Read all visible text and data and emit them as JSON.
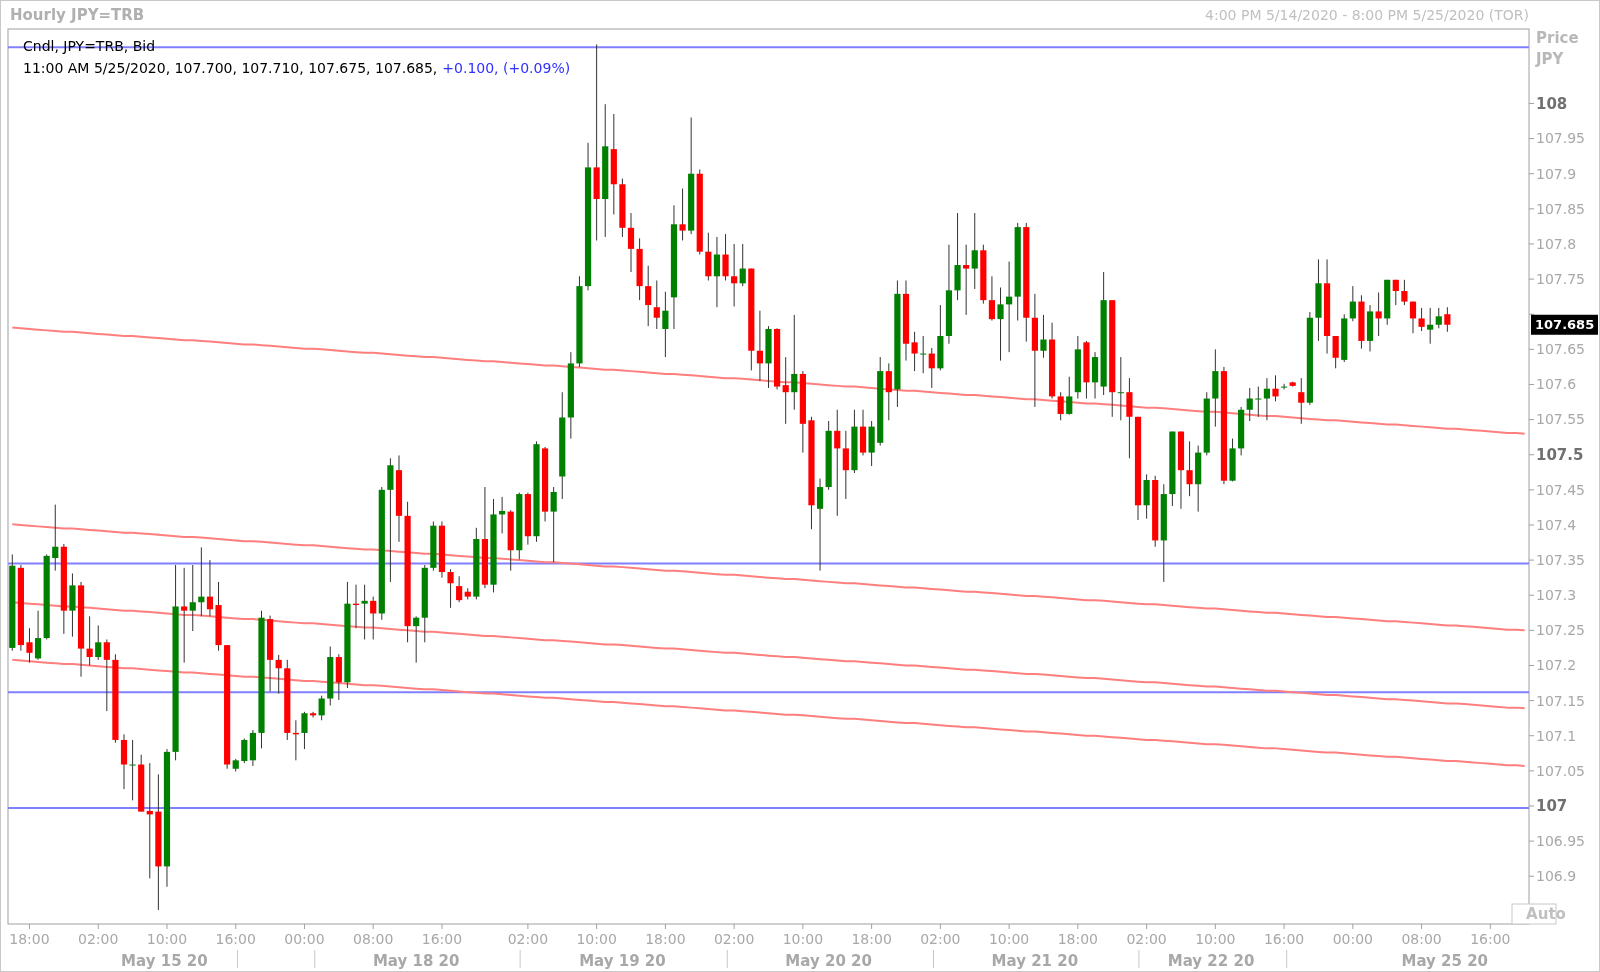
{
  "chart_data": {
    "type": "candlestick",
    "title": "Hourly JPY=TRB",
    "subtitle": "4:00 PM 5/14/2020 - 8:00 PM 5/25/2020 (TOR)",
    "ylabel": "Price\nJPY",
    "categories": [
      null,
      null,
      "18:00",
      null,
      null,
      null,
      null,
      null,
      null,
      null,
      "02:00",
      null,
      null,
      null,
      null,
      null,
      null,
      null,
      "10:00",
      null,
      null,
      null,
      null,
      null,
      null,
      null,
      "16:00",
      null,
      null,
      null,
      null,
      null,
      null,
      null,
      "00:00",
      null,
      null,
      null,
      null,
      null,
      null,
      null,
      "08:00",
      null,
      null,
      null,
      null,
      null,
      null,
      null,
      "16:00",
      null,
      null,
      null,
      null,
      null,
      null,
      null,
      null,
      null,
      "02:00",
      null,
      null,
      null,
      null,
      null,
      null,
      null,
      "10:00",
      null,
      null,
      null,
      null,
      null,
      null,
      null,
      "18:00",
      null,
      null,
      null,
      null,
      null,
      null,
      null,
      "02:00",
      null,
      null,
      null,
      null,
      null,
      null,
      null,
      "10:00",
      null,
      null,
      null,
      null,
      null,
      null,
      null,
      "18:00",
      null,
      null,
      null,
      null,
      null,
      null,
      null,
      "02:00",
      null,
      null,
      null,
      null,
      null,
      null,
      null,
      "10:00",
      null,
      null,
      null,
      null,
      null,
      null,
      null,
      "18:00",
      null,
      null,
      null,
      null,
      null,
      null,
      null,
      "02:00",
      null,
      null,
      null,
      null,
      null,
      null,
      null,
      "10:00",
      null,
      null,
      null,
      null,
      null,
      null,
      null,
      "16:00",
      null,
      null,
      null,
      null,
      null,
      null,
      null,
      "00:00",
      null,
      null,
      null,
      null,
      null,
      null,
      null,
      "08:00",
      null,
      null,
      null,
      null,
      null,
      null,
      null,
      "16:00",
      null,
      null,
      null,
      null
    ],
    "ohlc": [
      [
        107.225,
        107.358,
        107.221,
        107.342
      ],
      [
        107.339,
        107.343,
        107.221,
        107.229
      ],
      [
        107.233,
        107.253,
        107.204,
        107.218
      ],
      [
        107.21,
        107.278,
        107.208,
        107.239
      ],
      [
        107.239,
        107.358,
        107.237,
        107.356
      ],
      [
        107.353,
        107.429,
        107.335,
        107.369
      ],
      [
        107.369,
        107.373,
        107.245,
        107.278
      ],
      [
        107.278,
        107.331,
        107.241,
        107.314
      ],
      [
        107.314,
        107.319,
        107.184,
        107.224
      ],
      [
        107.224,
        107.27,
        107.2,
        107.212
      ],
      [
        107.212,
        107.257,
        107.208,
        107.233
      ],
      [
        107.233,
        107.237,
        107.135,
        107.208
      ],
      [
        107.208,
        107.216,
        107.09,
        107.094
      ],
      [
        107.094,
        107.102,
        107.024,
        107.059
      ],
      [
        107.059,
        107.094,
        107.008,
        107.059
      ],
      [
        107.059,
        107.073,
        106.992,
        106.992
      ],
      [
        106.993,
        107.061,
        106.897,
        106.988
      ],
      [
        106.992,
        107.045,
        106.852,
        106.914
      ],
      [
        106.914,
        107.081,
        106.885,
        107.077
      ],
      [
        107.077,
        107.343,
        107.065,
        107.284
      ],
      [
        107.284,
        107.339,
        107.204,
        107.278
      ],
      [
        107.278,
        107.343,
        107.249,
        107.29
      ],
      [
        107.29,
        107.368,
        107.27,
        107.298
      ],
      [
        107.298,
        107.35,
        107.27,
        107.28
      ],
      [
        107.286,
        107.319,
        107.221,
        107.229
      ],
      [
        107.229,
        107.229,
        107.053,
        107.059
      ],
      [
        107.053,
        107.067,
        107.049,
        107.065
      ],
      [
        107.064,
        107.096,
        107.061,
        107.094
      ],
      [
        107.065,
        107.108,
        107.057,
        107.104
      ],
      [
        107.104,
        107.278,
        107.082,
        107.268
      ],
      [
        107.266,
        107.271,
        107.163,
        107.208
      ],
      [
        107.208,
        107.215,
        107.16,
        107.196
      ],
      [
        107.196,
        107.208,
        107.094,
        107.104
      ],
      [
        107.104,
        107.122,
        107.065,
        107.102
      ],
      [
        107.104,
        107.134,
        107.081,
        107.132
      ],
      [
        107.132,
        107.134,
        107.126,
        107.129
      ],
      [
        107.129,
        107.157,
        107.122,
        107.153
      ],
      [
        107.153,
        107.227,
        107.143,
        107.212
      ],
      [
        107.212,
        107.216,
        107.151,
        107.176
      ],
      [
        107.176,
        107.319,
        107.168,
        107.288
      ],
      [
        107.288,
        107.315,
        107.253,
        107.286
      ],
      [
        107.288,
        107.315,
        107.237,
        107.292
      ],
      [
        107.292,
        107.298,
        107.237,
        107.274
      ],
      [
        107.274,
        107.454,
        107.265,
        107.45
      ],
      [
        107.45,
        107.495,
        107.319,
        107.485
      ],
      [
        107.478,
        107.499,
        107.376,
        107.413
      ],
      [
        107.413,
        107.433,
        107.233,
        107.256
      ],
      [
        107.256,
        107.27,
        107.204,
        107.268
      ],
      [
        107.268,
        107.343,
        107.233,
        107.339
      ],
      [
        107.339,
        107.405,
        107.335,
        107.399
      ],
      [
        107.399,
        107.405,
        107.325,
        107.333
      ],
      [
        107.333,
        107.337,
        107.282,
        107.317
      ],
      [
        107.313,
        107.327,
        107.29,
        107.293
      ],
      [
        107.305,
        107.31,
        107.294,
        107.298
      ],
      [
        107.298,
        107.396,
        107.294,
        107.38
      ],
      [
        107.38,
        107.454,
        107.31,
        107.315
      ],
      [
        107.315,
        107.437,
        107.304,
        107.415
      ],
      [
        107.415,
        107.44,
        107.388,
        107.42
      ],
      [
        107.419,
        107.421,
        107.335,
        107.364
      ],
      [
        107.364,
        107.446,
        107.351,
        107.444
      ],
      [
        107.444,
        107.446,
        107.372,
        107.384
      ],
      [
        107.384,
        107.519,
        107.376,
        107.515
      ],
      [
        107.509,
        107.511,
        107.405,
        107.419
      ],
      [
        107.419,
        107.454,
        107.347,
        107.447
      ],
      [
        107.469,
        107.589,
        107.437,
        107.553
      ],
      [
        107.553,
        107.646,
        107.523,
        107.63
      ],
      [
        107.63,
        107.754,
        107.625,
        107.74
      ],
      [
        107.74,
        107.944,
        107.734,
        107.909
      ],
      [
        107.909,
        108.084,
        107.805,
        107.864
      ],
      [
        107.864,
        107.999,
        107.81,
        107.939
      ],
      [
        107.935,
        107.985,
        107.842,
        107.885
      ],
      [
        107.885,
        107.893,
        107.81,
        107.823
      ],
      [
        107.823,
        107.844,
        107.76,
        107.793
      ],
      [
        107.793,
        107.808,
        107.72,
        107.74
      ],
      [
        107.74,
        107.769,
        107.683,
        107.713
      ],
      [
        107.71,
        107.748,
        107.679,
        107.695
      ],
      [
        107.679,
        107.732,
        107.639,
        107.705
      ],
      [
        107.724,
        107.855,
        107.679,
        107.828
      ],
      [
        107.828,
        107.879,
        107.805,
        107.819
      ],
      [
        107.819,
        107.98,
        107.814,
        107.9
      ],
      [
        107.9,
        107.906,
        107.785,
        107.789
      ],
      [
        107.789,
        107.816,
        107.748,
        107.754
      ],
      [
        107.754,
        107.81,
        107.71,
        107.785
      ],
      [
        107.785,
        107.814,
        107.748,
        107.754
      ],
      [
        107.754,
        107.8,
        107.711,
        107.744
      ],
      [
        107.744,
        107.8,
        107.74,
        107.765
      ],
      [
        107.765,
        107.765,
        107.62,
        107.648
      ],
      [
        107.648,
        107.705,
        107.605,
        107.63
      ],
      [
        107.63,
        107.683,
        107.595,
        107.679
      ],
      [
        107.679,
        107.68,
        107.593,
        107.597
      ],
      [
        107.599,
        107.639,
        107.544,
        107.589
      ],
      [
        107.589,
        107.699,
        107.564,
        107.615
      ],
      [
        107.615,
        107.619,
        107.503,
        107.544
      ],
      [
        107.549,
        107.554,
        107.394,
        107.428
      ],
      [
        107.423,
        107.466,
        107.335,
        107.454
      ],
      [
        107.454,
        107.548,
        107.45,
        107.534
      ],
      [
        107.534,
        107.564,
        107.413,
        107.509
      ],
      [
        107.509,
        107.534,
        107.437,
        107.478
      ],
      [
        107.478,
        107.564,
        107.474,
        107.54
      ],
      [
        107.54,
        107.564,
        107.499,
        107.503
      ],
      [
        107.503,
        107.548,
        107.484,
        107.54
      ],
      [
        107.517,
        107.639,
        107.513,
        107.619
      ],
      [
        107.619,
        107.63,
        107.549,
        107.589
      ],
      [
        107.593,
        107.748,
        107.568,
        107.729
      ],
      [
        107.729,
        107.748,
        107.634,
        107.658
      ],
      [
        107.66,
        107.675,
        107.619,
        107.644
      ],
      [
        107.644,
        107.669,
        107.616,
        107.644
      ],
      [
        107.644,
        107.652,
        107.595,
        107.623
      ],
      [
        107.623,
        107.713,
        107.62,
        107.669
      ],
      [
        107.669,
        107.799,
        107.658,
        107.734
      ],
      [
        107.734,
        107.844,
        107.72,
        107.77
      ],
      [
        107.77,
        107.799,
        107.699,
        107.765
      ],
      [
        107.765,
        107.844,
        107.736,
        107.791
      ],
      [
        107.791,
        107.799,
        107.715,
        107.72
      ],
      [
        107.72,
        107.754,
        107.691,
        107.693
      ],
      [
        107.693,
        107.738,
        107.634,
        107.714
      ],
      [
        107.714,
        107.775,
        107.646,
        107.725
      ],
      [
        107.725,
        107.83,
        107.691,
        107.824
      ],
      [
        107.824,
        107.83,
        107.661,
        107.695
      ],
      [
        107.695,
        107.729,
        107.568,
        107.648
      ],
      [
        107.648,
        107.699,
        107.638,
        107.664
      ],
      [
        107.664,
        107.688,
        107.58,
        107.583
      ],
      [
        107.583,
        107.589,
        107.549,
        107.558
      ],
      [
        107.558,
        107.611,
        107.557,
        107.583
      ],
      [
        107.589,
        107.669,
        107.58,
        107.65
      ],
      [
        107.66,
        107.662,
        107.58,
        107.603
      ],
      [
        107.603,
        107.646,
        107.58,
        107.639
      ],
      [
        107.597,
        107.76,
        107.585,
        107.72
      ],
      [
        107.72,
        107.72,
        107.554,
        107.589
      ],
      [
        107.589,
        107.639,
        107.549,
        107.589
      ],
      [
        107.589,
        107.609,
        107.495,
        107.554
      ],
      [
        107.554,
        107.554,
        107.407,
        107.428
      ],
      [
        107.428,
        107.472,
        107.409,
        107.464
      ],
      [
        107.464,
        107.47,
        107.369,
        107.378
      ],
      [
        107.378,
        107.458,
        107.319,
        107.444
      ],
      [
        107.444,
        107.533,
        107.427,
        107.533
      ],
      [
        107.533,
        107.533,
        107.423,
        107.478
      ],
      [
        107.478,
        107.519,
        107.441,
        107.458
      ],
      [
        107.458,
        107.513,
        107.419,
        107.503
      ],
      [
        107.503,
        107.589,
        107.499,
        107.58
      ],
      [
        107.58,
        107.65,
        107.54,
        107.619
      ],
      [
        107.619,
        107.625,
        107.458,
        107.463
      ],
      [
        107.463,
        107.523,
        107.462,
        107.509
      ],
      [
        107.509,
        107.568,
        107.499,
        107.564
      ],
      [
        107.564,
        107.595,
        107.548,
        107.58
      ],
      [
        107.58,
        107.597,
        107.554,
        107.58
      ],
      [
        107.58,
        107.609,
        107.549,
        107.594
      ],
      [
        107.594,
        107.613,
        107.576,
        107.583
      ],
      [
        107.597,
        107.601,
        107.593,
        107.597
      ],
      [
        107.603,
        107.604,
        107.597,
        107.598
      ],
      [
        107.589,
        107.609,
        107.544,
        107.574
      ],
      [
        107.574,
        107.703,
        107.571,
        107.695
      ],
      [
        107.695,
        107.778,
        107.662,
        107.744
      ],
      [
        107.744,
        107.778,
        107.644,
        107.669
      ],
      [
        107.669,
        107.669,
        107.623,
        107.638
      ],
      [
        107.635,
        107.7,
        107.632,
        107.694
      ],
      [
        107.694,
        107.74,
        107.69,
        107.718
      ],
      [
        107.718,
        107.727,
        107.651,
        107.662
      ],
      [
        107.662,
        107.713,
        107.647,
        107.704
      ],
      [
        107.704,
        107.731,
        107.669,
        107.694
      ],
      [
        107.694,
        107.749,
        107.685,
        107.749
      ],
      [
        107.749,
        107.749,
        107.713,
        107.733
      ],
      [
        107.733,
        107.749,
        107.713,
        107.718
      ],
      [
        107.718,
        107.718,
        107.673,
        107.694
      ],
      [
        107.694,
        107.709,
        107.676,
        107.682
      ],
      [
        107.678,
        107.709,
        107.658,
        107.685
      ],
      [
        107.685,
        107.709,
        107.68,
        107.697
      ],
      [
        107.7,
        107.71,
        107.675,
        107.685
      ],
      null,
      null,
      null,
      null,
      null,
      null,
      null,
      null,
      null
    ],
    "series": [
      {
        "type": "line",
        "color": "#ff7f7f",
        "values": [
          107.681,
          107.68,
          107.679,
          107.678,
          107.677,
          107.676,
          107.675,
          107.675,
          107.674,
          107.673,
          107.672,
          107.671,
          107.67,
          107.669,
          107.669,
          107.668,
          107.667,
          107.666,
          107.665,
          107.664,
          107.663,
          107.663,
          107.662,
          107.661,
          107.66,
          107.659,
          107.658,
          107.657,
          107.657,
          107.656,
          107.655,
          107.654,
          107.653,
          107.652,
          107.651,
          107.651,
          107.65,
          107.649,
          107.648,
          107.647,
          107.646,
          107.645,
          107.645,
          107.644,
          107.643,
          107.642,
          107.641,
          107.64,
          107.639,
          107.639,
          107.638,
          107.637,
          107.636,
          107.635,
          107.634,
          107.633,
          107.633,
          107.632,
          107.631,
          107.63,
          107.629,
          107.628,
          107.627,
          107.627,
          107.626,
          107.625,
          107.624,
          107.623,
          107.622,
          107.621,
          107.621,
          107.62,
          107.619,
          107.618,
          107.617,
          107.616,
          107.615,
          107.615,
          107.614,
          107.613,
          107.612,
          107.611,
          107.61,
          107.609,
          107.609,
          107.608,
          107.607,
          107.606,
          107.605,
          107.604,
          107.603,
          107.603,
          107.602,
          107.601,
          107.6,
          107.599,
          107.598,
          107.597,
          107.597,
          107.596,
          107.595,
          107.594,
          107.593,
          107.592,
          107.591,
          107.591,
          107.59,
          107.589,
          107.588,
          107.587,
          107.586,
          107.585,
          107.585,
          107.584,
          107.583,
          107.582,
          107.581,
          107.58,
          107.579,
          107.579,
          107.578,
          107.577,
          107.576,
          107.575,
          107.574,
          107.573,
          107.573,
          107.572,
          107.571,
          107.57,
          107.569,
          107.568,
          107.567,
          107.567,
          107.566,
          107.565,
          107.564,
          107.563,
          107.562,
          107.561,
          107.561,
          107.56,
          107.559,
          107.558,
          107.557,
          107.556,
          107.555,
          107.555,
          107.554,
          107.553,
          107.552,
          107.551,
          107.55,
          107.549,
          107.549,
          107.548,
          107.547,
          107.546,
          107.545,
          107.544,
          107.543,
          107.543,
          107.542,
          107.541,
          107.54,
          107.539,
          107.538,
          107.537,
          107.537,
          107.536,
          107.535,
          107.534,
          107.533,
          107.532,
          107.531,
          107.531,
          107.53
        ]
      },
      {
        "type": "line",
        "color": "#ff7f7f",
        "values": [
          107.401,
          107.4,
          107.399,
          107.398,
          107.397,
          107.396,
          107.395,
          107.395,
          107.394,
          107.393,
          107.392,
          107.391,
          107.39,
          107.389,
          107.389,
          107.388,
          107.387,
          107.386,
          107.385,
          107.384,
          107.383,
          107.383,
          107.382,
          107.381,
          107.38,
          107.379,
          107.378,
          107.377,
          107.377,
          107.376,
          107.375,
          107.374,
          107.373,
          107.372,
          107.371,
          107.371,
          107.37,
          107.369,
          107.368,
          107.367,
          107.366,
          107.365,
          107.365,
          107.364,
          107.363,
          107.362,
          107.361,
          107.36,
          107.359,
          107.359,
          107.358,
          107.357,
          107.356,
          107.355,
          107.354,
          107.353,
          107.353,
          107.352,
          107.351,
          107.35,
          107.349,
          107.348,
          107.347,
          107.347,
          107.346,
          107.345,
          107.344,
          107.343,
          107.342,
          107.341,
          107.341,
          107.34,
          107.339,
          107.338,
          107.337,
          107.336,
          107.335,
          107.335,
          107.334,
          107.333,
          107.332,
          107.331,
          107.33,
          107.329,
          107.329,
          107.328,
          107.327,
          107.326,
          107.325,
          107.324,
          107.323,
          107.323,
          107.322,
          107.321,
          107.32,
          107.319,
          107.318,
          107.317,
          107.317,
          107.316,
          107.315,
          107.314,
          107.313,
          107.312,
          107.311,
          107.311,
          107.31,
          107.309,
          107.308,
          107.307,
          107.306,
          107.305,
          107.305,
          107.304,
          107.303,
          107.302,
          107.301,
          107.3,
          107.299,
          107.299,
          107.298,
          107.297,
          107.296,
          107.295,
          107.294,
          107.293,
          107.293,
          107.292,
          107.291,
          107.29,
          107.289,
          107.288,
          107.287,
          107.287,
          107.286,
          107.285,
          107.284,
          107.283,
          107.282,
          107.281,
          107.281,
          107.28,
          107.279,
          107.278,
          107.277,
          107.276,
          107.275,
          107.275,
          107.274,
          107.273,
          107.272,
          107.271,
          107.27,
          107.269,
          107.269,
          107.268,
          107.267,
          107.266,
          107.265,
          107.264,
          107.263,
          107.263,
          107.262,
          107.261,
          107.26,
          107.259,
          107.258,
          107.257,
          107.257,
          107.256,
          107.255,
          107.254,
          107.253,
          107.252,
          107.251,
          107.251,
          107.25
        ]
      },
      {
        "type": "line",
        "color": "#ff7f7f",
        "values": [
          107.29,
          107.289,
          107.288,
          107.287,
          107.286,
          107.285,
          107.284,
          107.284,
          107.283,
          107.282,
          107.281,
          107.28,
          107.279,
          107.278,
          107.278,
          107.277,
          107.276,
          107.275,
          107.274,
          107.273,
          107.272,
          107.272,
          107.271,
          107.27,
          107.269,
          107.268,
          107.267,
          107.266,
          107.266,
          107.265,
          107.264,
          107.263,
          107.262,
          107.261,
          107.26,
          107.26,
          107.259,
          107.258,
          107.257,
          107.256,
          107.255,
          107.254,
          107.254,
          107.253,
          107.252,
          107.251,
          107.25,
          107.249,
          107.248,
          107.248,
          107.247,
          107.246,
          107.245,
          107.244,
          107.243,
          107.242,
          107.242,
          107.241,
          107.24,
          107.239,
          107.238,
          107.237,
          107.236,
          107.236,
          107.235,
          107.234,
          107.233,
          107.232,
          107.231,
          107.23,
          107.23,
          107.229,
          107.228,
          107.227,
          107.226,
          107.225,
          107.224,
          107.224,
          107.223,
          107.222,
          107.221,
          107.22,
          107.219,
          107.218,
          107.218,
          107.217,
          107.216,
          107.215,
          107.214,
          107.213,
          107.212,
          107.212,
          107.211,
          107.21,
          107.209,
          107.208,
          107.207,
          107.206,
          107.206,
          107.205,
          107.204,
          107.203,
          107.202,
          107.201,
          107.2,
          107.2,
          107.199,
          107.198,
          107.197,
          107.196,
          107.195,
          107.194,
          107.194,
          107.193,
          107.192,
          107.191,
          107.19,
          107.189,
          107.188,
          107.188,
          107.187,
          107.186,
          107.185,
          107.184,
          107.183,
          107.182,
          107.182,
          107.181,
          107.18,
          107.179,
          107.178,
          107.177,
          107.176,
          107.176,
          107.175,
          107.174,
          107.173,
          107.172,
          107.171,
          107.17,
          107.17,
          107.169,
          107.168,
          107.167,
          107.166,
          107.165,
          107.164,
          107.164,
          107.163,
          107.162,
          107.161,
          107.16,
          107.159,
          107.158,
          107.158,
          107.157,
          107.156,
          107.155,
          107.154,
          107.153,
          107.152,
          107.152,
          107.151,
          107.15,
          107.149,
          107.148,
          107.147,
          107.146,
          107.146,
          107.145,
          107.144,
          107.143,
          107.142,
          107.141,
          107.14,
          107.14,
          107.139
        ]
      },
      {
        "type": "line",
        "color": "#ff7f7f",
        "values": [
          107.208,
          107.207,
          107.206,
          107.205,
          107.204,
          107.203,
          107.202,
          107.202,
          107.201,
          107.2,
          107.199,
          107.198,
          107.197,
          107.196,
          107.196,
          107.195,
          107.194,
          107.193,
          107.192,
          107.191,
          107.19,
          107.19,
          107.189,
          107.188,
          107.187,
          107.186,
          107.185,
          107.184,
          107.184,
          107.183,
          107.182,
          107.181,
          107.18,
          107.179,
          107.178,
          107.178,
          107.177,
          107.176,
          107.175,
          107.174,
          107.173,
          107.172,
          107.172,
          107.171,
          107.17,
          107.169,
          107.168,
          107.167,
          107.166,
          107.166,
          107.165,
          107.164,
          107.163,
          107.162,
          107.161,
          107.16,
          107.16,
          107.159,
          107.158,
          107.157,
          107.156,
          107.155,
          107.154,
          107.154,
          107.153,
          107.152,
          107.151,
          107.15,
          107.149,
          107.148,
          107.148,
          107.147,
          107.146,
          107.145,
          107.144,
          107.143,
          107.142,
          107.142,
          107.141,
          107.14,
          107.139,
          107.138,
          107.137,
          107.136,
          107.136,
          107.135,
          107.134,
          107.133,
          107.132,
          107.131,
          107.13,
          107.13,
          107.129,
          107.128,
          107.127,
          107.126,
          107.125,
          107.124,
          107.124,
          107.123,
          107.122,
          107.121,
          107.12,
          107.119,
          107.118,
          107.118,
          107.117,
          107.116,
          107.115,
          107.114,
          107.113,
          107.112,
          107.112,
          107.111,
          107.11,
          107.109,
          107.108,
          107.107,
          107.106,
          107.106,
          107.105,
          107.104,
          107.103,
          107.102,
          107.101,
          107.1,
          107.1,
          107.099,
          107.098,
          107.097,
          107.096,
          107.095,
          107.094,
          107.094,
          107.093,
          107.092,
          107.091,
          107.09,
          107.089,
          107.088,
          107.088,
          107.087,
          107.086,
          107.085,
          107.084,
          107.083,
          107.082,
          107.082,
          107.081,
          107.08,
          107.079,
          107.078,
          107.077,
          107.076,
          107.076,
          107.075,
          107.074,
          107.073,
          107.072,
          107.071,
          107.07,
          107.07,
          107.069,
          107.068,
          107.067,
          107.066,
          107.065,
          107.064,
          107.064,
          107.063,
          107.062,
          107.061,
          107.06,
          107.059,
          107.058,
          107.058,
          107.057
        ]
      }
    ],
    "ylim": [
      106.832,
      108.106
    ],
    "yticks": [
      106.9,
      106.95,
      107,
      107.05,
      107.1,
      107.15,
      107.2,
      107.25,
      107.3,
      107.35,
      107.4,
      107.45,
      107.5,
      107.55,
      107.6,
      107.65,
      {
        "value": 107.7,
        "label": null
      },
      107.75,
      107.8,
      107.85,
      107.9,
      107.95,
      108
    ],
    "ref_lines": [
      {
        "axis": "y",
        "value": 108.08,
        "color": "#8080ff"
      },
      {
        "axis": "y",
        "value": 107.345,
        "color": "#8080ff"
      },
      {
        "axis": "y",
        "value": 107.162,
        "color": "#8080ff"
      },
      {
        "axis": "y",
        "value": 106.997,
        "color": "#8080ff"
      }
    ],
    "annotations": [
      "Cndl, JPY=TRB, Bid",
      "11:00 AM 5/25/2020, 107.700, 107.710, 107.675, 107.685,",
      "+0.100, (+0.09%)",
      "May 15 20",
      "May 18 20",
      "May 19 20",
      "May 20 20",
      "May 21 20",
      "May 22 20",
      "May 25 20",
      "Auto",
      "107.685"
    ]
  }
}
